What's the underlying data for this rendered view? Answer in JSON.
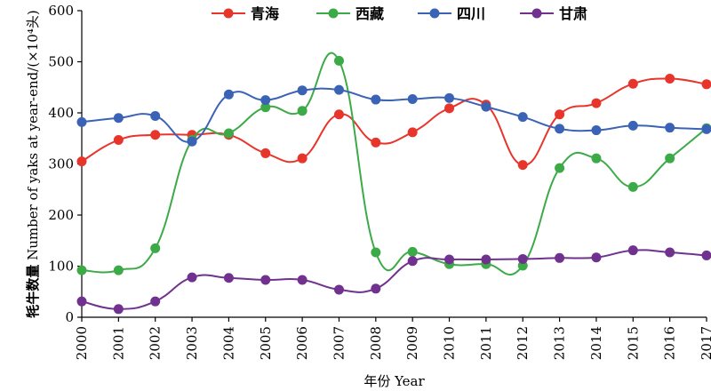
{
  "chart_data": {
    "type": "line",
    "title": "",
    "xlabel": "年份 Year",
    "ylabel": "牦牛数量 Number of yaks at year-end/(×10⁴头)",
    "ylabel_line1": "牦牛数量",
    "ylabel_line2": "Number of yaks at year-end/(×10⁴头)",
    "ylim": [
      0,
      600
    ],
    "yticks": [
      0,
      100,
      200,
      300,
      400,
      500,
      600
    ],
    "x": [
      "2000",
      "2001",
      "2002",
      "2003",
      "2004",
      "2005",
      "2006",
      "2007",
      "2008",
      "2009",
      "2010",
      "2011",
      "2012",
      "2013",
      "2014",
      "2015",
      "2016",
      "2017"
    ],
    "grid": false,
    "legend_position": "top",
    "smooth": true,
    "series": [
      {
        "name": "青海",
        "color": "#e8352b",
        "values": [
          305,
          347,
          357,
          357,
          357,
          321,
          311,
          397,
          342,
          362,
          409,
          416,
          298,
          397,
          419,
          457,
          467,
          456
        ]
      },
      {
        "name": "西藏",
        "color": "#3daa48",
        "values": [
          92,
          92,
          135,
          347,
          360,
          411,
          404,
          502,
          127,
          128,
          104,
          104,
          101,
          292,
          311,
          255,
          311,
          370
        ]
      },
      {
        "name": "四川",
        "color": "#3b63b5",
        "values": [
          382,
          390,
          394,
          344,
          436,
          425,
          444,
          445,
          426,
          427,
          429,
          412,
          392,
          369,
          366,
          375,
          371,
          368
        ]
      },
      {
        "name": "甘肃",
        "color": "#71328f",
        "values": [
          31,
          16,
          31,
          78,
          77,
          73,
          73,
          54,
          56,
          110,
          113,
          113,
          114,
          116,
          117,
          131,
          127,
          121
        ]
      }
    ]
  }
}
